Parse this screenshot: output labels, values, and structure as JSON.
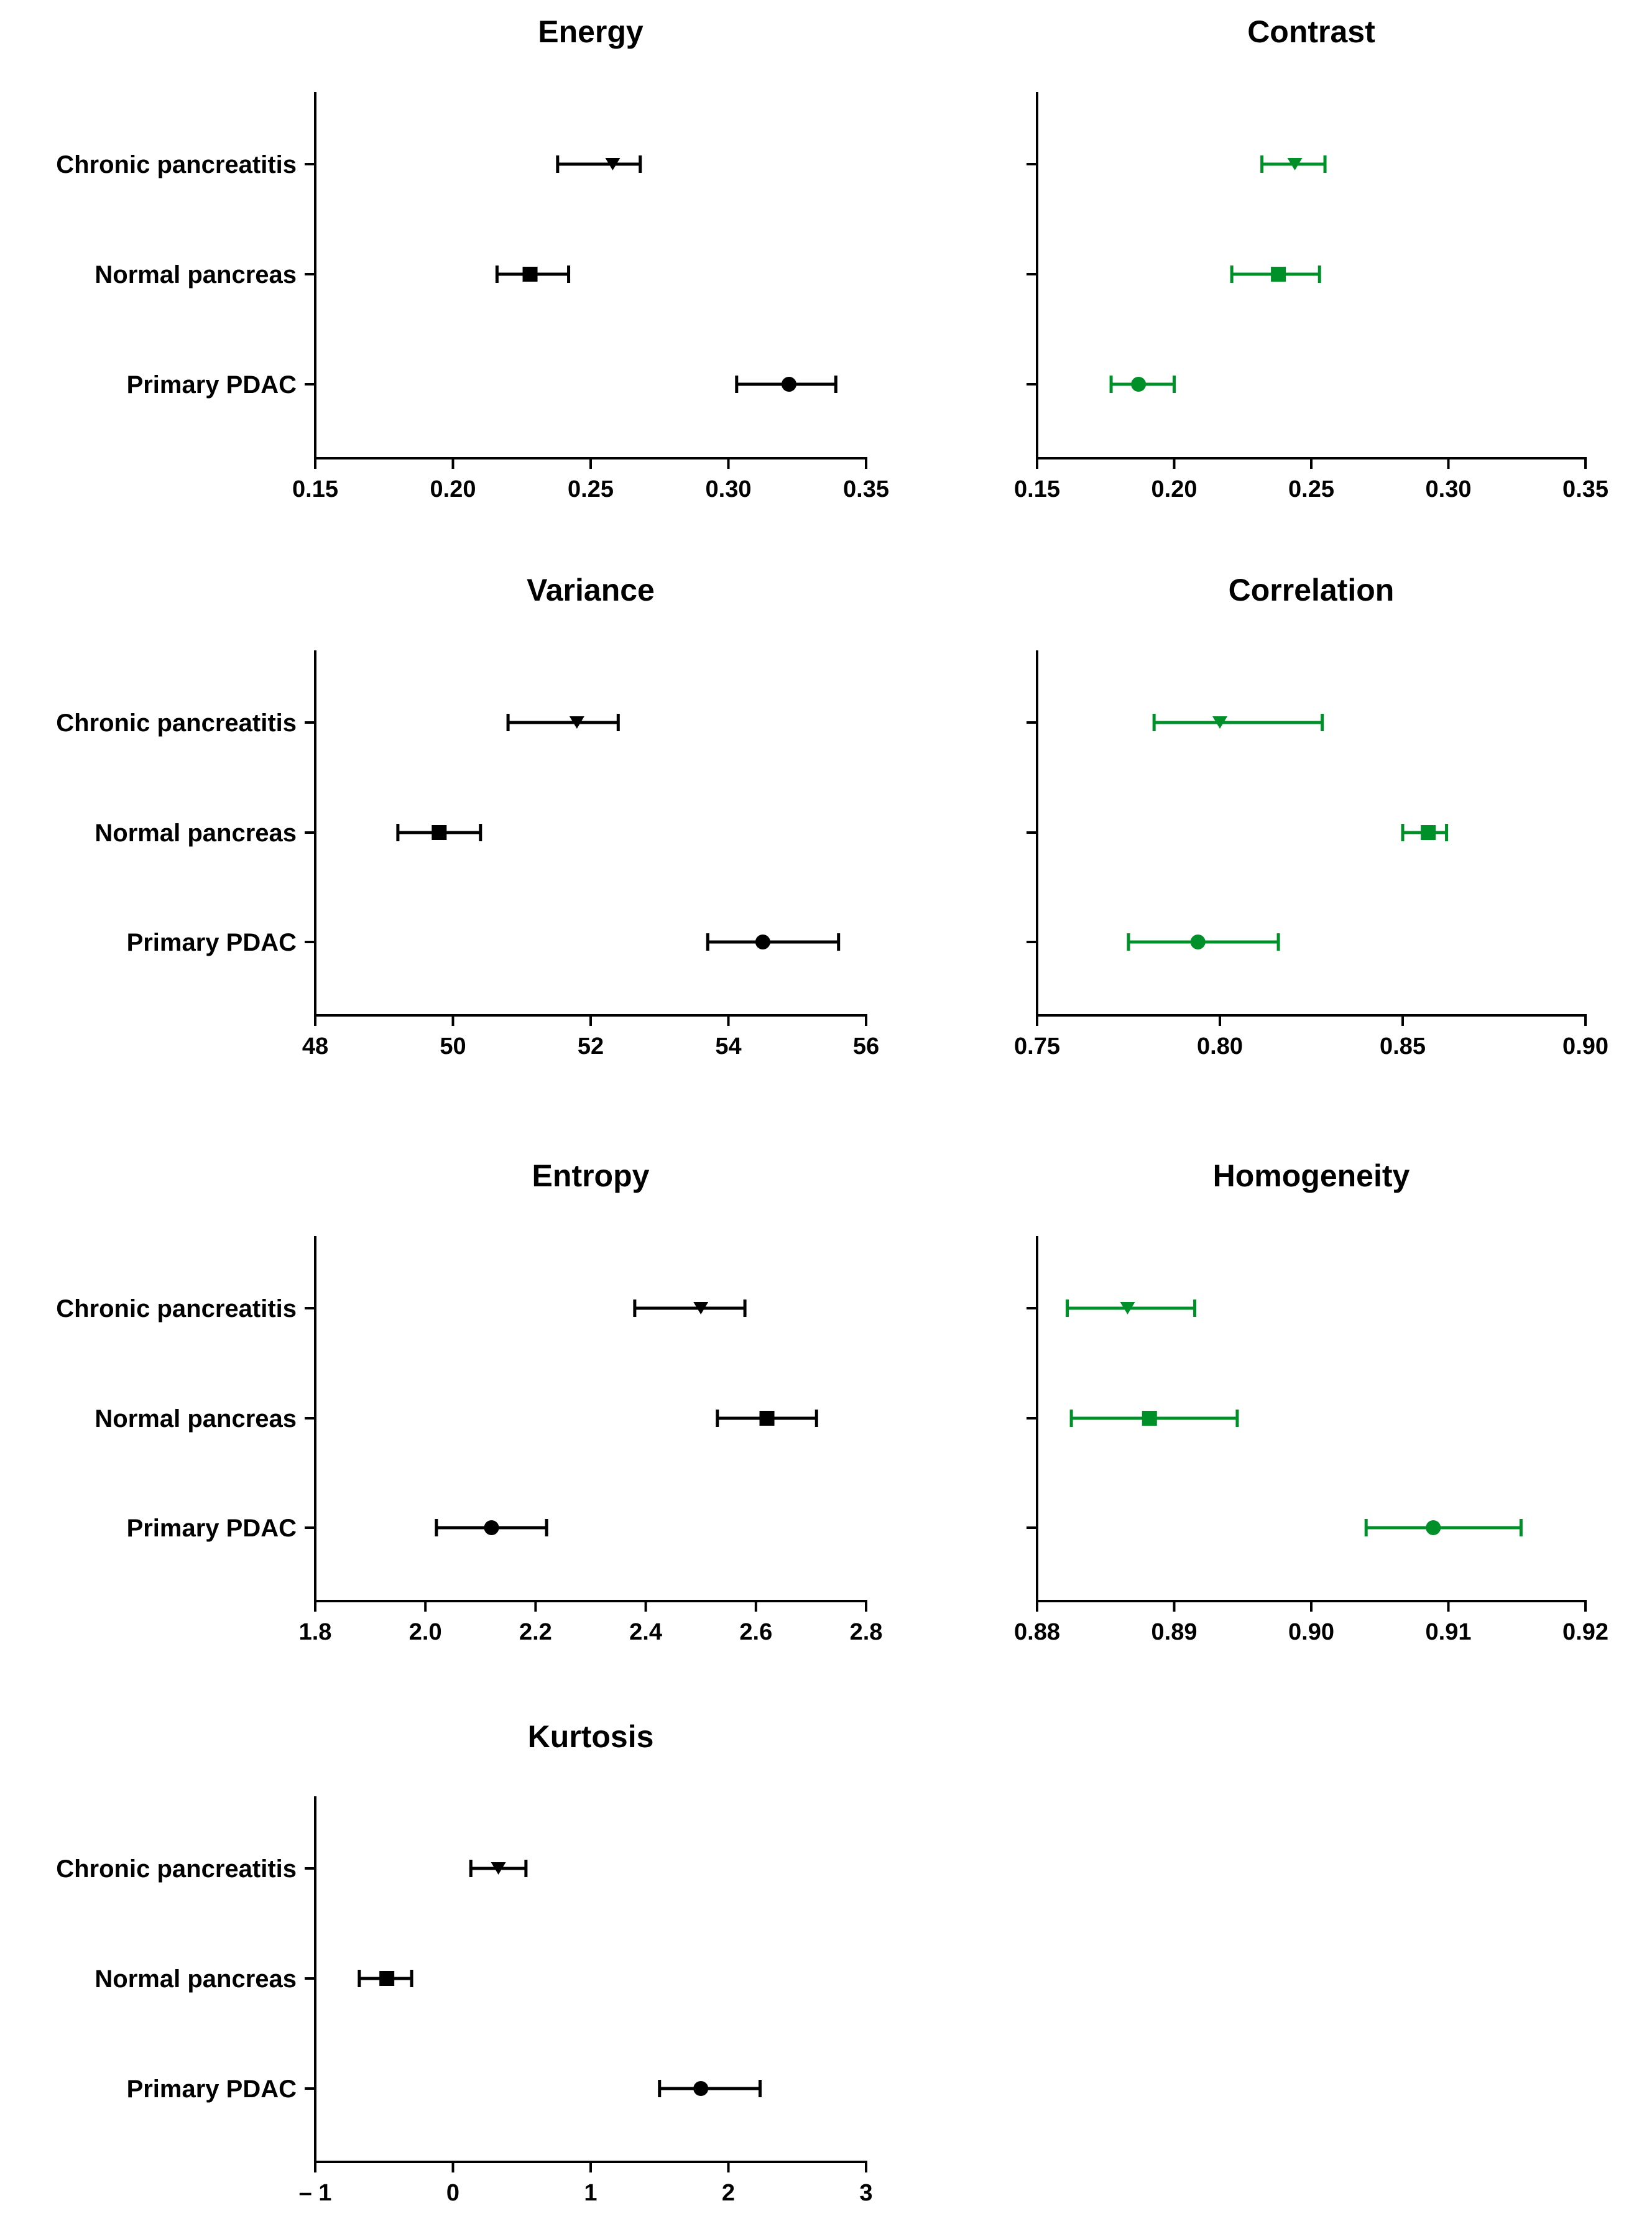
{
  "colors": {
    "black": "#000000",
    "green": "#00902a"
  },
  "chart_data": [
    {
      "type": "dot-errorbar",
      "title": "Energy",
      "color": "black",
      "categories": [
        "Chronic pancreatitis",
        "Normal pancreas",
        "Primary PDAC"
      ],
      "markers": [
        "triangle-down",
        "square",
        "circle"
      ],
      "values": [
        0.258,
        0.228,
        0.322
      ],
      "err_low": [
        0.238,
        0.216,
        0.303
      ],
      "err_high": [
        0.268,
        0.242,
        0.339
      ],
      "xlim": [
        0.15,
        0.35
      ],
      "ticks": [
        0.15,
        0.2,
        0.25,
        0.3,
        0.35
      ],
      "tick_labels": [
        "0.15",
        "0.20",
        "0.25",
        "0.30",
        "0.35"
      ]
    },
    {
      "type": "dot-errorbar",
      "title": "Contrast",
      "color": "green",
      "categories": [
        "Chronic pancreatitis",
        "Normal pancreas",
        "Primary PDAC"
      ],
      "markers": [
        "triangle-down",
        "square",
        "circle"
      ],
      "values": [
        0.244,
        0.238,
        0.187
      ],
      "err_low": [
        0.232,
        0.221,
        0.177
      ],
      "err_high": [
        0.255,
        0.253,
        0.2
      ],
      "xlim": [
        0.15,
        0.35
      ],
      "ticks": [
        0.15,
        0.2,
        0.25,
        0.3,
        0.35
      ],
      "tick_labels": [
        "0.15",
        "0.20",
        "0.25",
        "0.30",
        "0.35"
      ]
    },
    {
      "type": "dot-errorbar",
      "title": "Variance",
      "color": "black",
      "categories": [
        "Chronic pancreatitis",
        "Normal pancreas",
        "Primary PDAC"
      ],
      "markers": [
        "triangle-down",
        "square",
        "circle"
      ],
      "values": [
        51.8,
        49.8,
        54.5
      ],
      "err_low": [
        50.8,
        49.2,
        53.7
      ],
      "err_high": [
        52.4,
        50.4,
        55.6
      ],
      "xlim": [
        48,
        56
      ],
      "ticks": [
        48,
        50,
        52,
        54,
        56
      ],
      "tick_labels": [
        "48",
        "50",
        "52",
        "54",
        "56"
      ]
    },
    {
      "type": "dot-errorbar",
      "title": "Correlation",
      "color": "green",
      "categories": [
        "Chronic pancreatitis",
        "Normal pancreas",
        "Primary PDAC"
      ],
      "markers": [
        "triangle-down",
        "square",
        "circle"
      ],
      "values": [
        0.8,
        0.857,
        0.794
      ],
      "err_low": [
        0.782,
        0.85,
        0.775
      ],
      "err_high": [
        0.828,
        0.862,
        0.816
      ],
      "xlim": [
        0.75,
        0.9
      ],
      "ticks": [
        0.75,
        0.8,
        0.85,
        0.9
      ],
      "tick_labels": [
        "0.75",
        "0.80",
        "0.85",
        "0.90"
      ]
    },
    {
      "type": "dot-errorbar",
      "title": "Entropy",
      "color": "black",
      "categories": [
        "Chronic pancreatitis",
        "Normal pancreas",
        "Primary PDAC"
      ],
      "markers": [
        "triangle-down",
        "square",
        "circle"
      ],
      "values": [
        2.5,
        2.62,
        2.12
      ],
      "err_low": [
        2.38,
        2.53,
        2.02
      ],
      "err_high": [
        2.58,
        2.71,
        2.22
      ],
      "xlim": [
        1.8,
        2.8
      ],
      "ticks": [
        1.8,
        2.0,
        2.2,
        2.4,
        2.6,
        2.8
      ],
      "tick_labels": [
        "1.8",
        "2.0",
        "2.2",
        "2.4",
        "2.6",
        "2.8"
      ]
    },
    {
      "type": "dot-errorbar",
      "title": "Homogeneity",
      "color": "green",
      "categories": [
        "Chronic pancreatitis",
        "Normal pancreas",
        "Primary PDAC"
      ],
      "markers": [
        "triangle-down",
        "square",
        "circle"
      ],
      "values": [
        0.8866,
        0.8882,
        0.9089
      ],
      "err_low": [
        0.8822,
        0.8825,
        0.904
      ],
      "err_high": [
        0.8915,
        0.8946,
        0.9153
      ],
      "xlim": [
        0.88,
        0.92
      ],
      "ticks": [
        0.88,
        0.89,
        0.9,
        0.91,
        0.92
      ],
      "tick_labels": [
        "0.88",
        "0.89",
        "0.90",
        "0.91",
        "0.92"
      ]
    },
    {
      "type": "dot-errorbar",
      "title": "Kurtosis",
      "color": "black",
      "categories": [
        "Chronic pancreatitis",
        "Normal pancreas",
        "Primary PDAC"
      ],
      "markers": [
        "triangle-down",
        "square",
        "circle"
      ],
      "values": [
        0.33,
        -0.48,
        1.8
      ],
      "err_low": [
        0.13,
        -0.68,
        1.5
      ],
      "err_high": [
        0.53,
        -0.3,
        2.23
      ],
      "xlim": [
        -1,
        3
      ],
      "ticks": [
        -1,
        0,
        1,
        2,
        3
      ],
      "tick_labels": [
        "– 1",
        "0",
        "1",
        "2",
        "3"
      ]
    }
  ]
}
